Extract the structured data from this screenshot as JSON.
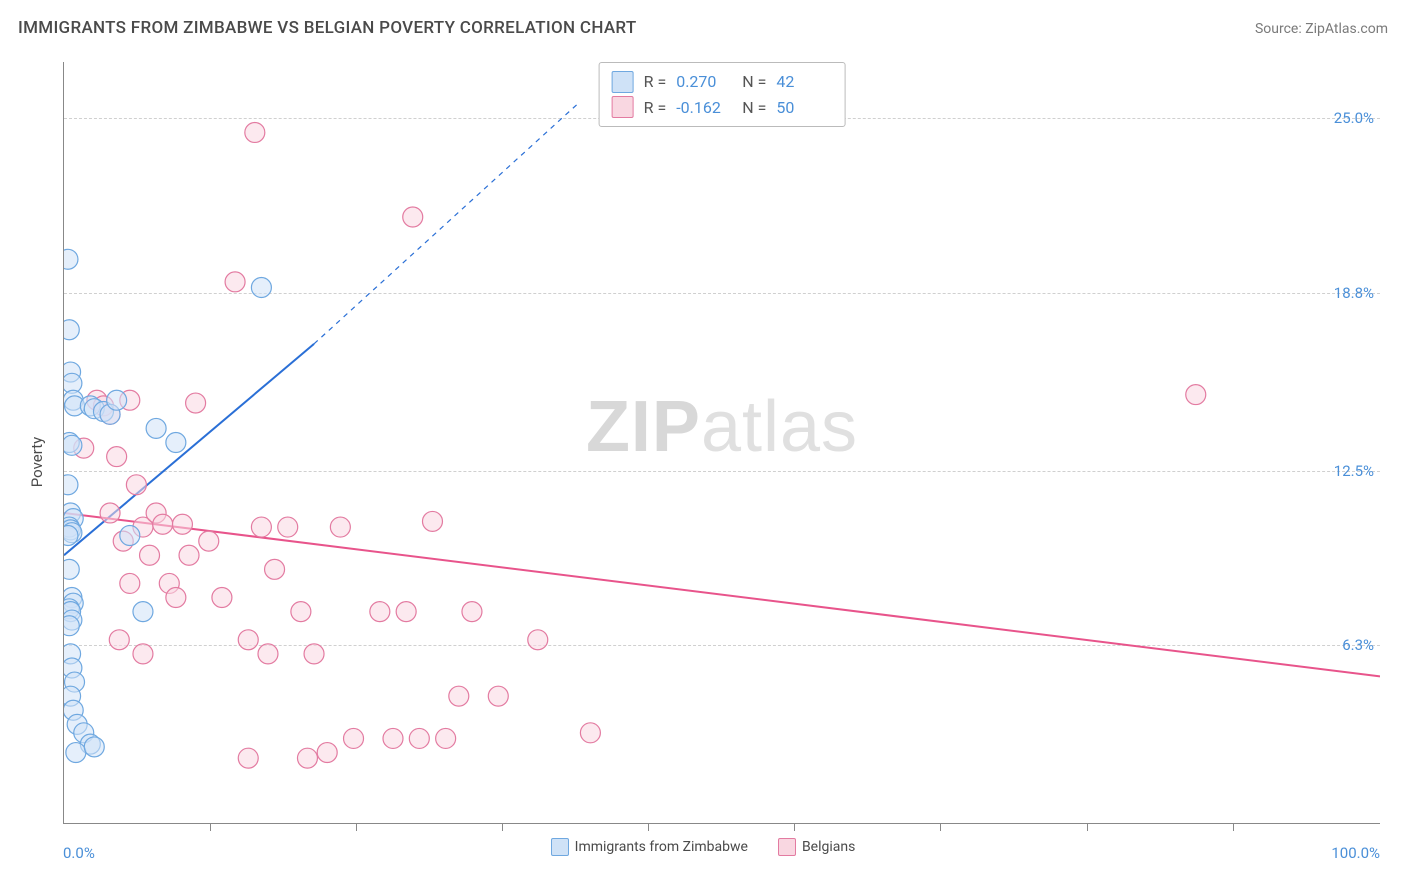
{
  "header": {
    "title": "IMMIGRANTS FROM ZIMBABWE VS BELGIAN POVERTY CORRELATION CHART",
    "source": "Source: ZipAtlas.com"
  },
  "chart": {
    "type": "scatter",
    "ylabel": "Poverty",
    "xlim": [
      0,
      100
    ],
    "ylim": [
      0,
      27
    ],
    "xlabel_min": "0.0%",
    "xlabel_max": "100.0%",
    "xtick_positions": [
      11.1,
      22.2,
      33.3,
      44.4,
      55.5,
      66.6,
      77.7,
      88.8
    ],
    "yticks": [
      {
        "v": 6.3,
        "label": "6.3%"
      },
      {
        "v": 12.5,
        "label": "12.5%"
      },
      {
        "v": 18.8,
        "label": "18.8%"
      },
      {
        "v": 25.0,
        "label": "25.0%"
      }
    ],
    "background_color": "#ffffff",
    "grid_color": "#d0d0d0",
    "watermark": "ZIPatlas",
    "series": [
      {
        "name": "Immigrants from Zimbabwe",
        "color_fill": "#cfe2f7",
        "color_stroke": "#6fa8e0",
        "marker_r": 10,
        "R": "0.270",
        "N": "42",
        "trend": {
          "x1": 0,
          "y1": 9.5,
          "x2": 19,
          "y2": 17.0,
          "dash_from_x": 19,
          "dash_to_x": 39,
          "dash_to_y": 25.5,
          "stroke": "#2a6fd6",
          "width": 2
        },
        "points": [
          [
            0.3,
            20.0
          ],
          [
            0.4,
            17.5
          ],
          [
            0.5,
            16.0
          ],
          [
            0.6,
            15.6
          ],
          [
            0.7,
            15.0
          ],
          [
            0.8,
            14.8
          ],
          [
            0.4,
            13.5
          ],
          [
            0.6,
            13.4
          ],
          [
            0.3,
            12.0
          ],
          [
            0.5,
            11.0
          ],
          [
            0.7,
            10.8
          ],
          [
            0.4,
            10.5
          ],
          [
            0.5,
            10.4
          ],
          [
            0.6,
            10.3
          ],
          [
            0.3,
            10.2
          ],
          [
            0.4,
            9.0
          ],
          [
            0.6,
            8.0
          ],
          [
            0.7,
            7.8
          ],
          [
            0.4,
            7.6
          ],
          [
            0.5,
            7.5
          ],
          [
            0.6,
            7.2
          ],
          [
            0.4,
            7.0
          ],
          [
            0.5,
            6.0
          ],
          [
            0.6,
            5.5
          ],
          [
            0.8,
            5.0
          ],
          [
            0.5,
            4.5
          ],
          [
            0.7,
            4.0
          ],
          [
            1.0,
            3.5
          ],
          [
            1.5,
            3.2
          ],
          [
            2.0,
            2.8
          ],
          [
            0.9,
            2.5
          ],
          [
            2.3,
            2.7
          ],
          [
            2.0,
            14.8
          ],
          [
            2.3,
            14.7
          ],
          [
            3.0,
            14.6
          ],
          [
            3.5,
            14.5
          ],
          [
            5.0,
            10.2
          ],
          [
            8.5,
            13.5
          ],
          [
            15.0,
            19.0
          ],
          [
            4.0,
            15.0
          ],
          [
            7.0,
            14.0
          ],
          [
            6.0,
            7.5
          ]
        ]
      },
      {
        "name": "Belgians",
        "color_fill": "#f9d7e1",
        "color_stroke": "#e37ba1",
        "marker_r": 10,
        "R": "-0.162",
        "N": "50",
        "trend": {
          "x1": 0,
          "y1": 11.0,
          "x2": 100,
          "y2": 5.2,
          "stroke": "#e8548b",
          "width": 2
        },
        "points": [
          [
            1.5,
            13.3
          ],
          [
            2.5,
            15.0
          ],
          [
            3.0,
            14.8
          ],
          [
            3.5,
            14.5
          ],
          [
            4.0,
            13.0
          ],
          [
            4.5,
            10.0
          ],
          [
            5.0,
            15.0
          ],
          [
            5.5,
            12.0
          ],
          [
            6.0,
            10.5
          ],
          [
            6.5,
            9.5
          ],
          [
            7.0,
            11.0
          ],
          [
            7.5,
            10.6
          ],
          [
            8.0,
            8.5
          ],
          [
            8.5,
            8.0
          ],
          [
            9.0,
            10.6
          ],
          [
            9.5,
            9.5
          ],
          [
            10.0,
            14.9
          ],
          [
            11.0,
            10.0
          ],
          [
            12.0,
            8.0
          ],
          [
            13.0,
            19.2
          ],
          [
            14.0,
            6.5
          ],
          [
            14.5,
            24.5
          ],
          [
            15.0,
            10.5
          ],
          [
            15.5,
            6.0
          ],
          [
            16.0,
            9.0
          ],
          [
            17.0,
            10.5
          ],
          [
            18.0,
            7.5
          ],
          [
            19.0,
            6.0
          ],
          [
            20.0,
            2.5
          ],
          [
            21.0,
            10.5
          ],
          [
            22.0,
            3.0
          ],
          [
            24.0,
            7.5
          ],
          [
            25.0,
            3.0
          ],
          [
            26.5,
            21.5
          ],
          [
            26.0,
            7.5
          ],
          [
            27.0,
            3.0
          ],
          [
            28.0,
            10.7
          ],
          [
            29.0,
            3.0
          ],
          [
            30.0,
            4.5
          ],
          [
            31.0,
            7.5
          ],
          [
            33.0,
            4.5
          ],
          [
            36.0,
            6.5
          ],
          [
            40.0,
            3.2
          ],
          [
            18.5,
            2.3
          ],
          [
            14.0,
            2.3
          ],
          [
            3.5,
            11.0
          ],
          [
            5.0,
            8.5
          ],
          [
            4.2,
            6.5
          ],
          [
            6.0,
            6.0
          ],
          [
            86.0,
            15.2
          ]
        ]
      }
    ],
    "legend": {
      "items": [
        {
          "label": "Immigrants from Zimbabwe",
          "fill": "#cfe2f7",
          "stroke": "#6fa8e0"
        },
        {
          "label": "Belgians",
          "fill": "#f9d7e1",
          "stroke": "#e37ba1"
        }
      ]
    }
  }
}
